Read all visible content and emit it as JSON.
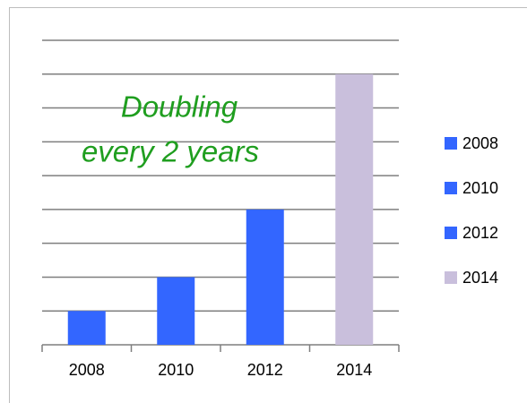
{
  "chart_data": {
    "type": "bar",
    "annotation": [
      "Doubling",
      "every 2 years"
    ],
    "categories": [
      "2008",
      "2010",
      "2012",
      "2014"
    ],
    "values": [
      1,
      2,
      4,
      8
    ],
    "colors": [
      "#3366ff",
      "#3366ff",
      "#3366ff",
      "#c9bfdc"
    ],
    "ylim": [
      0,
      9
    ],
    "yticks": [
      0,
      1,
      2,
      3,
      4,
      5,
      6,
      7,
      8,
      9
    ],
    "grid": true,
    "legend": "right"
  }
}
